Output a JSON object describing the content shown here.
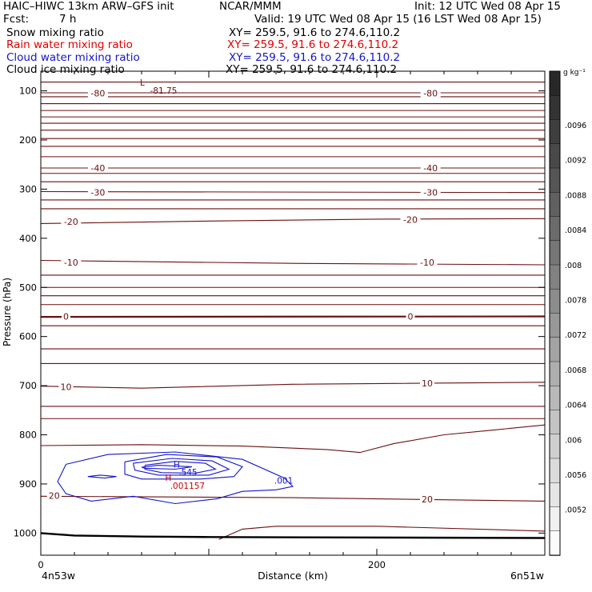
{
  "header": {
    "line1_left": "HAIC–HIWC 13km ARW–GFS init",
    "line1_center": "NCAR/MMM",
    "line1_right": "Init: 12 UTC Wed 08 Apr 15",
    "line2_left": "Fcst:",
    "line2_fcst": "7 h",
    "line2_right": "Valid: 19 UTC Wed 08 Apr 15 (16 LST Wed 08 Apr 15)"
  },
  "fields": [
    {
      "name": "Snow mixing ratio",
      "xy": "XY= 259.5, 91.6 to 274.6,110.2",
      "color": "#000000"
    },
    {
      "name": "Rain water mixing ratio",
      "xy": "XY= 259.5, 91.6 to 274.6,110.2",
      "color": "#e00000"
    },
    {
      "name": "Cloud water mixing ratio",
      "xy": "XY= 259.5, 91.6 to 274.6,110.2",
      "color": "#1515cc"
    },
    {
      "name": "Cloud ice mixing ratio",
      "xy": "XY= 259.5, 91.6 to 274.6,110.2",
      "color": "#000000"
    }
  ],
  "colors": {
    "temperature": "#6b0f0f",
    "cloud_water": "#1515cc",
    "rain_water": "#cc0000",
    "terrain": "#000000"
  },
  "chart_data": {
    "type": "line",
    "xlabel": "Distance (km)",
    "ylabel": "Pressure (hPa)",
    "xlim": [
      0,
      300
    ],
    "ylim": [
      1045,
      60
    ],
    "x_ticks": [
      0,
      200
    ],
    "y_ticks": [
      100,
      200,
      300,
      400,
      500,
      600,
      700,
      800,
      900,
      1000
    ],
    "x_endpoints": {
      "left": "4n53w",
      "right": "6n51w"
    },
    "colorbar": {
      "unit": "g kg⁻¹",
      "labels": [
        ".0096",
        ".0092",
        ".0088",
        ".0084",
        ".008",
        ".0078",
        ".0072",
        ".0068",
        ".0064",
        ".006",
        ".0056",
        ".0052"
      ]
    },
    "temperature_contours": [
      {
        "label": "-80",
        "label_positions": [
          [
            34,
            105
          ],
          [
            232,
            105
          ]
        ],
        "points": [
          [
            0,
            104
          ],
          [
            300,
            104
          ]
        ]
      },
      {
        "label": "-40",
        "label_positions": [
          [
            34,
            257
          ],
          [
            232,
            257
          ]
        ],
        "points": [
          [
            0,
            257
          ],
          [
            300,
            257
          ]
        ]
      },
      {
        "label": "-30",
        "label_positions": [
          [
            34,
            307
          ],
          [
            232,
            307
          ]
        ],
        "points": [
          [
            0,
            305
          ],
          [
            300,
            307
          ]
        ]
      },
      {
        "label": "-20",
        "label_positions": [
          [
            18,
            366
          ],
          [
            220,
            362
          ]
        ],
        "points": [
          [
            0,
            370
          ],
          [
            100,
            365
          ],
          [
            200,
            361
          ],
          [
            300,
            360
          ]
        ]
      },
      {
        "label": "-10",
        "label_positions": [
          [
            18,
            449
          ],
          [
            230,
            449
          ]
        ],
        "points": [
          [
            0,
            445
          ],
          [
            150,
            451
          ],
          [
            300,
            454
          ]
        ]
      },
      {
        "label": "0",
        "label_positions": [
          [
            15,
            559
          ],
          [
            220,
            559
          ]
        ],
        "points": [
          [
            0,
            560
          ],
          [
            300,
            559
          ]
        ]
      },
      {
        "label": "10",
        "label_positions": [
          [
            15,
            702
          ],
          [
            230,
            695
          ]
        ],
        "points": [
          [
            0,
            701
          ],
          [
            60,
            705
          ],
          [
            150,
            697
          ],
          [
            300,
            693
          ]
        ]
      },
      {
        "label": "20",
        "label_positions": [
          [
            8,
            924
          ],
          [
            230,
            931
          ]
        ],
        "points": [
          [
            0,
            925
          ],
          [
            150,
            928
          ],
          [
            300,
            935
          ]
        ]
      }
    ],
    "extra_isotherms_hpa": [
      82,
      112,
      126,
      140,
      153,
      166,
      180,
      197,
      213,
      234,
      268,
      285,
      322,
      340,
      475,
      500,
      517,
      535,
      578,
      625,
      655,
      742,
      767
    ],
    "lower_contours": [
      {
        "label": "",
        "points": [
          [
            0,
            822
          ],
          [
            60,
            820
          ],
          [
            120,
            823
          ],
          [
            170,
            830
          ],
          [
            190,
            836
          ],
          [
            210,
            818
          ],
          [
            240,
            800
          ],
          [
            270,
            790
          ],
          [
            300,
            780
          ]
        ]
      },
      {
        "label": "",
        "points": [
          [
            106,
            1013
          ],
          [
            120,
            992
          ],
          [
            140,
            986
          ],
          [
            200,
            986
          ],
          [
            300,
            996
          ]
        ]
      }
    ],
    "terrain": {
      "points": [
        [
          0,
          1000
        ],
        [
          20,
          1005
        ],
        [
          60,
          1007
        ],
        [
          100,
          1008
        ],
        [
          300,
          1010
        ]
      ]
    },
    "annotations": [
      {
        "text": "L",
        "x": 59,
        "y": 83,
        "color": "#6b0f0f"
      },
      {
        "text": "-81.75",
        "x": 65,
        "y": 99,
        "color": "#6b0f0f"
      },
      {
        "text": "H",
        "x": 79,
        "y": 860,
        "color": "#1515cc"
      },
      {
        "text": ".545",
        "x": 82,
        "y": 876,
        "color": "#1515cc"
      },
      {
        "text": "H",
        "x": 74,
        "y": 887,
        "color": "#cc0000"
      },
      {
        "text": ".001157",
        "x": 77,
        "y": 903,
        "color": "#cc0000"
      },
      {
        "text": ".001",
        "x": 139,
        "y": 893,
        "color": "#1515cc"
      }
    ],
    "cloud_water_contours": [
      {
        "points": [
          [
            15,
            860
          ],
          [
            40,
            840
          ],
          [
            80,
            835
          ],
          [
            120,
            850
          ],
          [
            145,
            888
          ],
          [
            150,
            905
          ],
          [
            140,
            912
          ],
          [
            120,
            915
          ],
          [
            105,
            930
          ],
          [
            80,
            940
          ],
          [
            55,
            925
          ],
          [
            30,
            935
          ],
          [
            15,
            920
          ],
          [
            10,
            895
          ],
          [
            15,
            860
          ]
        ]
      },
      {
        "points": [
          [
            50,
            855
          ],
          [
            75,
            840
          ],
          [
            105,
            845
          ],
          [
            120,
            865
          ],
          [
            115,
            885
          ],
          [
            95,
            890
          ],
          [
            60,
            890
          ],
          [
            50,
            880
          ],
          [
            50,
            855
          ]
        ]
      },
      {
        "points": [
          [
            55,
            858
          ],
          [
            78,
            848
          ],
          [
            102,
            853
          ],
          [
            112,
            870
          ],
          [
            100,
            882
          ],
          [
            70,
            882
          ],
          [
            56,
            872
          ],
          [
            55,
            858
          ]
        ]
      },
      {
        "points": [
          [
            62,
            862
          ],
          [
            80,
            854
          ],
          [
            98,
            858
          ],
          [
            104,
            870
          ],
          [
            92,
            878
          ],
          [
            72,
            877
          ],
          [
            62,
            870
          ],
          [
            62,
            862
          ]
        ]
      },
      {
        "points": [
          [
            60,
            866
          ],
          [
            70,
            862
          ],
          [
            90,
            865
          ],
          [
            80,
            870
          ],
          [
            62,
            868
          ],
          [
            60,
            866
          ]
        ]
      },
      {
        "points": [
          [
            28,
            885
          ],
          [
            35,
            882
          ],
          [
            45,
            885
          ],
          [
            38,
            888
          ],
          [
            28,
            885
          ]
        ]
      }
    ]
  }
}
